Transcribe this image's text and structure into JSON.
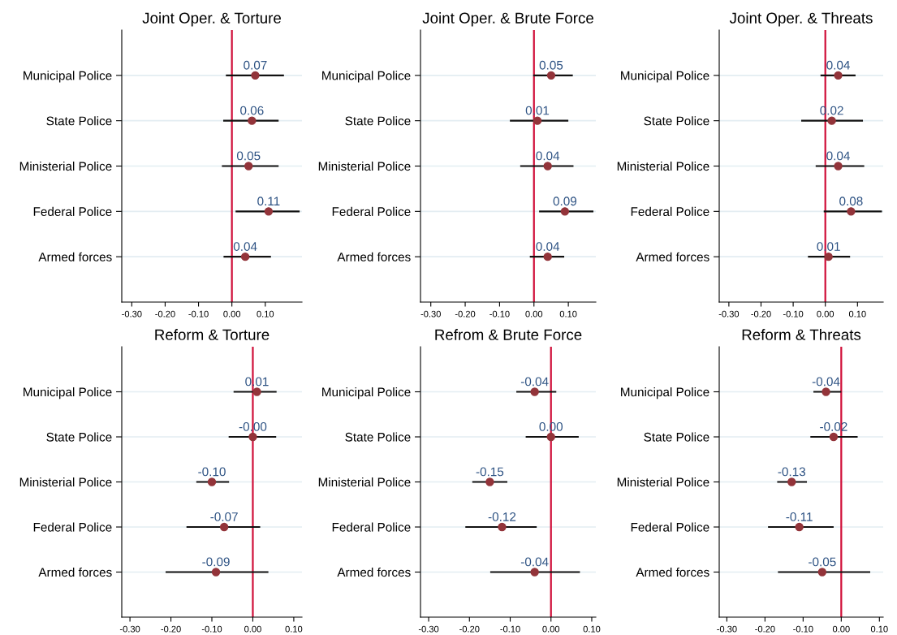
{
  "chart_data": [
    {
      "type": "scatter",
      "orientation": "horizontal",
      "title": "Joint Oper. & Torture",
      "categories": [
        "Municipal Police",
        "State Police",
        "Ministerial Police",
        "Federal Police",
        "Armed forces"
      ],
      "values": [
        0.07,
        0.06,
        0.05,
        0.11,
        0.04
      ],
      "errors": [
        [
          -0.018,
          0.156
        ],
        [
          -0.026,
          0.14
        ],
        [
          -0.03,
          0.14
        ],
        [
          0.011,
          0.203
        ],
        [
          -0.025,
          0.117
        ]
      ],
      "value_labels": [
        "0.07",
        "0.06",
        "0.05",
        "0.11",
        "0.04"
      ],
      "color": "#93343a",
      "marker": "circle",
      "grid": "y",
      "xlim": [
        -0.33,
        0.21
      ],
      "xticks": [
        {
          "value": -0.3,
          "label": "-0.30"
        },
        {
          "value": -0.2,
          "label": "-0.20"
        },
        {
          "value": -0.1,
          "label": "-0.10"
        },
        {
          "value": 0,
          "label": "0.00"
        },
        {
          "value": 0.1,
          "label": "0.10"
        }
      ],
      "ref_lines": [
        {
          "axis": "x",
          "value": 0,
          "color": "#d0103a"
        }
      ]
    },
    {
      "type": "scatter",
      "orientation": "horizontal",
      "title": "Joint Oper. & Brute Force",
      "categories": [
        "Municipal Police",
        "State Police",
        "Ministerial Police",
        "Federal Police",
        "Armed forces"
      ],
      "values": [
        0.05,
        0.01,
        0.04,
        0.09,
        0.04
      ],
      "errors": [
        [
          -0.002,
          0.113
        ],
        [
          -0.07,
          0.1
        ],
        [
          -0.04,
          0.115
        ],
        [
          0.015,
          0.173
        ],
        [
          -0.012,
          0.088
        ]
      ],
      "value_labels": [
        "0.05",
        "0.01",
        "0.04",
        "0.09",
        "0.04"
      ],
      "color": "#93343a",
      "marker": "circle",
      "grid": "y",
      "xlim": [
        -0.33,
        0.18
      ],
      "xticks": [
        {
          "value": -0.3,
          "label": "-0.30"
        },
        {
          "value": -0.2,
          "label": "-0.20"
        },
        {
          "value": -0.1,
          "label": "-0.10"
        },
        {
          "value": 0,
          "label": "0.00"
        },
        {
          "value": 0.1,
          "label": "0.10"
        }
      ],
      "ref_lines": [
        {
          "axis": "x",
          "value": 0,
          "color": "#d0103a"
        }
      ]
    },
    {
      "type": "scatter",
      "orientation": "horizontal",
      "title": "Joint Oper. & Threats",
      "categories": [
        "Municipal Police",
        "State Police",
        "Ministerial Police",
        "Federal Police",
        "Armed forces"
      ],
      "values": [
        0.04,
        0.02,
        0.04,
        0.08,
        0.01
      ],
      "errors": [
        [
          -0.015,
          0.094
        ],
        [
          -0.075,
          0.117
        ],
        [
          -0.03,
          0.121
        ],
        [
          -0.005,
          0.176
        ],
        [
          -0.054,
          0.077
        ]
      ],
      "value_labels": [
        "0.04",
        "0.02",
        "0.04",
        "0.08",
        "0.01"
      ],
      "color": "#93343a",
      "marker": "circle",
      "grid": "y",
      "xlim": [
        -0.33,
        0.18
      ],
      "xticks": [
        {
          "value": -0.3,
          "label": "-0.30"
        },
        {
          "value": -0.2,
          "label": "-0.20"
        },
        {
          "value": -0.1,
          "label": "-0.10"
        },
        {
          "value": 0,
          "label": "0.00"
        },
        {
          "value": 0.1,
          "label": "0.10"
        }
      ],
      "ref_lines": [
        {
          "axis": "x",
          "value": 0,
          "color": "#d0103a"
        }
      ]
    },
    {
      "type": "scatter",
      "orientation": "horizontal",
      "title": "Reform & Torture",
      "categories": [
        "Municipal Police",
        "State Police",
        "Ministerial Police",
        "Federal Police",
        "Armed forces"
      ],
      "values": [
        0.01,
        0,
        -0.1,
        -0.07,
        -0.09
      ],
      "errors": [
        [
          -0.047,
          0.058
        ],
        [
          -0.059,
          0.057
        ],
        [
          -0.138,
          -0.058
        ],
        [
          -0.162,
          0.018
        ],
        [
          -0.213,
          0.038
        ]
      ],
      "value_labels": [
        "0.01",
        "-0.00",
        "-0.10",
        "-0.07",
        "-0.09"
      ],
      "color": "#93343a",
      "marker": "circle",
      "grid": "y",
      "xlim": [
        -0.32,
        0.12
      ],
      "xticks": [
        {
          "value": -0.3,
          "label": "-0.30"
        },
        {
          "value": -0.2,
          "label": "-0.20"
        },
        {
          "value": -0.1,
          "label": "-0.10"
        },
        {
          "value": 0,
          "label": "0.00"
        },
        {
          "value": 0.1,
          "label": "0.10"
        }
      ],
      "ref_lines": [
        {
          "axis": "x",
          "value": 0,
          "color": "#d0103a"
        }
      ]
    },
    {
      "type": "scatter",
      "orientation": "horizontal",
      "title": "Refrom & Brute Force",
      "categories": [
        "Municipal Police",
        "State Police",
        "Ministerial Police",
        "Federal Police",
        "Armed forces"
      ],
      "values": [
        -0.04,
        0,
        -0.15,
        -0.12,
        -0.04
      ],
      "errors": [
        [
          -0.085,
          0.013
        ],
        [
          -0.062,
          0.068
        ],
        [
          -0.193,
          -0.107
        ],
        [
          -0.21,
          -0.035
        ],
        [
          -0.149,
          0.071
        ]
      ],
      "value_labels": [
        "-0.04",
        "0.00",
        "-0.15",
        "-0.12",
        "-0.04"
      ],
      "color": "#93343a",
      "marker": "circle",
      "grid": "y",
      "xlim": [
        -0.32,
        0.11
      ],
      "xticks": [
        {
          "value": -0.3,
          "label": "-0.30"
        },
        {
          "value": -0.2,
          "label": "-0.20"
        },
        {
          "value": -0.1,
          "label": "-0.10"
        },
        {
          "value": 0,
          "label": "0.00"
        },
        {
          "value": 0.1,
          "label": "0.10"
        }
      ],
      "ref_lines": [
        {
          "axis": "x",
          "value": 0,
          "color": "#d0103a"
        }
      ]
    },
    {
      "type": "scatter",
      "orientation": "horizontal",
      "title": "Reform & Threats",
      "categories": [
        "Municipal Police",
        "State Police",
        "Ministerial Police",
        "Federal Police",
        "Armed forces"
      ],
      "values": [
        -0.04,
        -0.02,
        -0.13,
        -0.11,
        -0.05
      ],
      "errors": [
        [
          -0.073,
          0.0
        ],
        [
          -0.081,
          0.043
        ],
        [
          -0.168,
          -0.09
        ],
        [
          -0.192,
          -0.02
        ],
        [
          -0.166,
          0.076
        ]
      ],
      "value_labels": [
        "-0.04",
        "-0.02",
        "-0.13",
        "-0.11",
        "-0.05"
      ],
      "color": "#93343a",
      "marker": "circle",
      "grid": "y",
      "xlim": [
        -0.32,
        0.11
      ],
      "xticks": [
        {
          "value": -0.3,
          "label": "-0.30"
        },
        {
          "value": -0.2,
          "label": "-0.20"
        },
        {
          "value": -0.1,
          "label": "-0.10"
        },
        {
          "value": 0,
          "label": "0.00"
        },
        {
          "value": 0.1,
          "label": "0.10"
        }
      ],
      "ref_lines": [
        {
          "axis": "x",
          "value": 0,
          "color": "#d0103a"
        }
      ]
    }
  ]
}
